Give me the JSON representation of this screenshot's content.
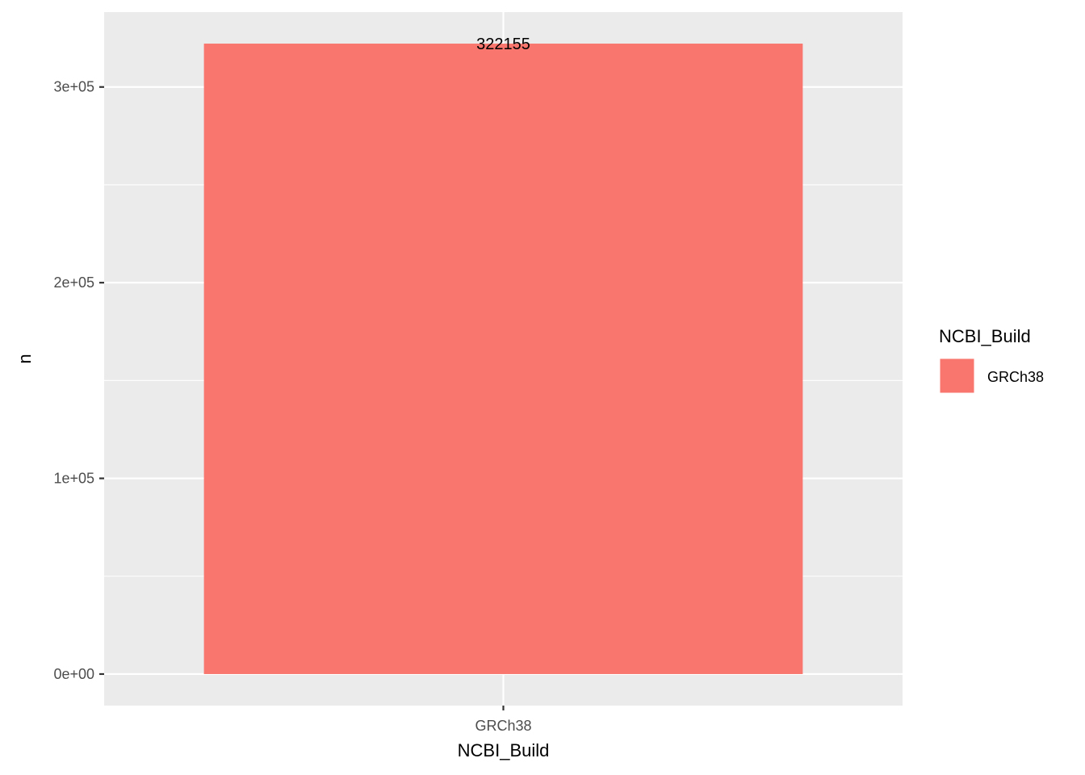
{
  "chart_data": {
    "type": "bar",
    "title": "",
    "xlabel": "NCBI_Build",
    "ylabel": "n",
    "categories": [
      "GRCh38"
    ],
    "values": [
      322155
    ],
    "data_labels": [
      "322155"
    ],
    "ylim": [
      -16107.75,
      338262.75
    ],
    "y_ticks": [
      0,
      100000,
      200000,
      300000
    ],
    "y_tick_labels": [
      "0e+00",
      "1e+05",
      "2e+05",
      "3e+05"
    ],
    "grid": true,
    "legend": {
      "title": "NCBI_Build",
      "position": "right",
      "entries": [
        "GRCh38"
      ]
    },
    "colors": {
      "panel": "#ebebeb",
      "grid": "#ffffff",
      "bar": "#f8766d"
    }
  }
}
